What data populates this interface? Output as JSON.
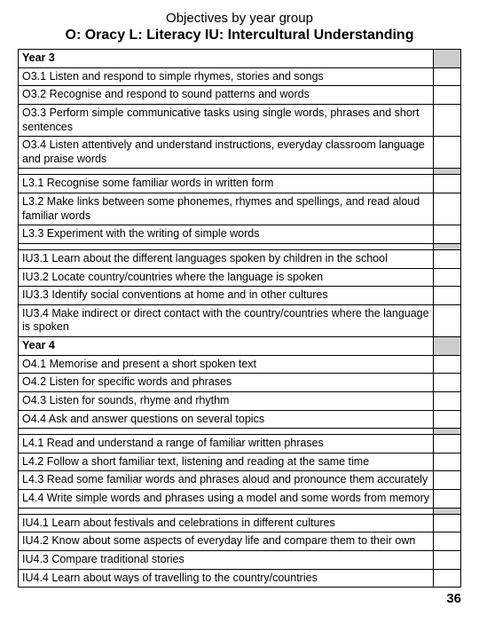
{
  "title": "Objectives by year group",
  "key": "O: Oracy   L: Literacy  IU: Intercultural Understanding",
  "page_number": "36",
  "colors": {
    "shade": "#cccccc",
    "border": "#000000",
    "background": "#ffffff"
  },
  "rows": [
    {
      "type": "header",
      "text": "Year 3"
    },
    {
      "type": "item",
      "text": "O3.1 Listen and respond to simple rhymes, stories and songs"
    },
    {
      "type": "item",
      "text": "O3.2 Recognise and respond to sound patterns and words"
    },
    {
      "type": "item",
      "text": "O3.3 Perform simple communicative tasks using single words, phrases and short sentences"
    },
    {
      "type": "item",
      "text": "O3.4 Listen attentively and understand instructions, everyday classroom language and praise words"
    },
    {
      "type": "spacer"
    },
    {
      "type": "item",
      "text": "L3.1 Recognise some familiar words in written form"
    },
    {
      "type": "item",
      "text": "L3.2 Make links between some phonemes, rhymes and spellings, and read aloud familiar words"
    },
    {
      "type": "item",
      "text": "L3.3 Experiment with the writing of simple words"
    },
    {
      "type": "spacer"
    },
    {
      "type": "item",
      "text": "IU3.1 Learn about the different languages spoken by children in the school"
    },
    {
      "type": "item",
      "text": "IU3.2 Locate country/countries where the language is spoken"
    },
    {
      "type": "item",
      "text": "IU3.3 Identify social conventions at home and in other cultures"
    },
    {
      "type": "item",
      "text": "IU3.4 Make indirect or direct contact with the country/countries where the language is spoken"
    },
    {
      "type": "header",
      "text": "Year 4"
    },
    {
      "type": "item",
      "text": "O4.1 Memorise and present a short spoken text"
    },
    {
      "type": "item",
      "text": "O4.2 Listen for specific words and phrases"
    },
    {
      "type": "item",
      "text": "O4.3 Listen for sounds, rhyme and rhythm"
    },
    {
      "type": "item",
      "text": "O4.4 Ask and answer questions on several topics"
    },
    {
      "type": "spacer"
    },
    {
      "type": "item",
      "text": "L4.1 Read and understand a range of familiar written phrases"
    },
    {
      "type": "item",
      "text": "L4.2 Follow a short familiar text, listening and reading at the same time"
    },
    {
      "type": "item",
      "text": "L4.3 Read some familiar words and phrases aloud and pronounce them accurately"
    },
    {
      "type": "item",
      "text": "L4.4 Write simple words and phrases using a model and some words from memory"
    },
    {
      "type": "spacer"
    },
    {
      "type": "item",
      "text": "IU4.1 Learn about festivals and celebrations in different cultures"
    },
    {
      "type": "item",
      "text": "IU4.2 Know about some aspects of everyday life and compare them to their own"
    },
    {
      "type": "item",
      "text": "IU4.3 Compare traditional stories"
    },
    {
      "type": "item",
      "text": "IU4.4 Learn about ways of travelling to the country/countries"
    }
  ]
}
